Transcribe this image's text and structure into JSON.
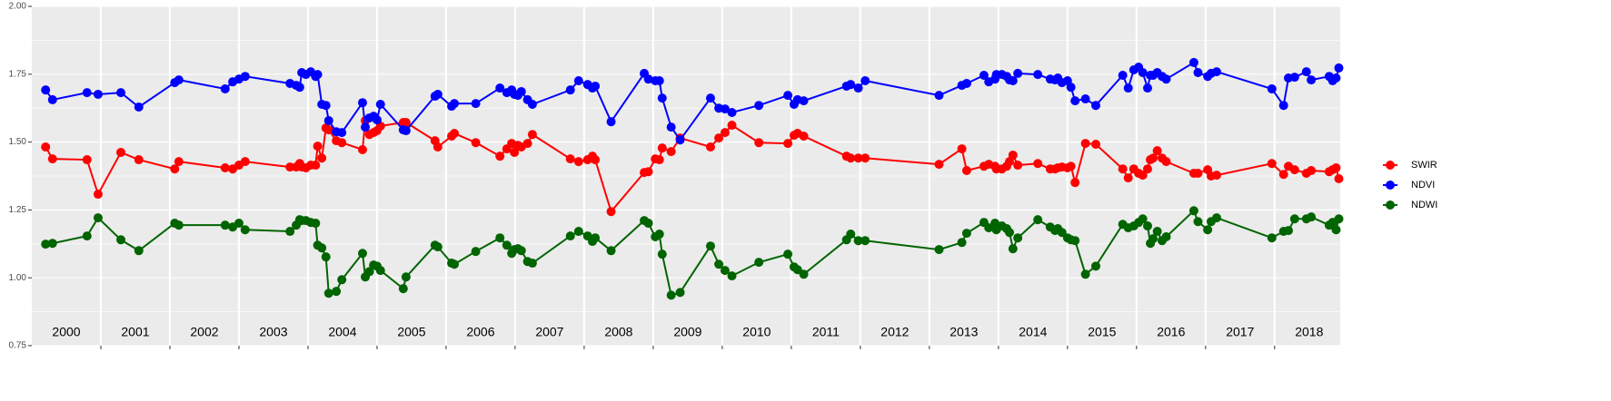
{
  "chart_data": {
    "type": "line",
    "x": [
      2000.2,
      2000.3,
      2000.8,
      2000.96,
      2001.29,
      2001.55,
      2002.07,
      2002.13,
      2002.8,
      2002.91,
      2003.0,
      2003.09,
      2003.74,
      2003.83,
      2003.88,
      2003.91,
      2003.97,
      2004.04,
      2004.11,
      2004.14,
      2004.2,
      2004.26,
      2004.3,
      2004.41,
      2004.49,
      2004.79,
      2004.83,
      2004.89,
      2004.95,
      2005.0,
      2005.05,
      2005.38,
      2005.42,
      2005.84,
      2005.88,
      2006.08,
      2006.12,
      2006.43,
      2006.78,
      2006.88,
      2006.95,
      2006.99,
      2007.04,
      2007.09,
      2007.18,
      2007.25,
      2007.8,
      2007.92,
      2008.05,
      2008.12,
      2008.16,
      2008.39,
      2008.87,
      2008.93,
      2009.03,
      2009.09,
      2009.13,
      2009.26,
      2009.39,
      2009.83,
      2009.95,
      2010.04,
      2010.14,
      2010.53,
      2010.95,
      2011.04,
      2011.09,
      2011.18,
      2011.8,
      2011.86,
      2011.97,
      2012.07,
      2013.14,
      2013.47,
      2013.54,
      2013.79,
      2013.86,
      2013.95,
      2013.97,
      2014.05,
      2014.12,
      2014.16,
      2014.21,
      2014.28,
      2014.57,
      2014.75,
      2014.82,
      2014.86,
      2014.92,
      2015.0,
      2015.05,
      2015.11,
      2015.26,
      2015.41,
      2015.8,
      2015.88,
      2015.96,
      2016.03,
      2016.09,
      2016.16,
      2016.2,
      2016.24,
      2016.3,
      2016.37,
      2016.43,
      2016.83,
      2016.89,
      2017.03,
      2017.08,
      2017.16,
      2017.96,
      2018.13,
      2018.2,
      2018.29,
      2018.46,
      2018.53,
      2018.79,
      2018.84,
      2018.89,
      2018.93
    ],
    "series": [
      {
        "name": "SWIR",
        "color": "#ff0000",
        "values": [
          1.482,
          1.438,
          1.435,
          1.308,
          1.462,
          1.435,
          1.401,
          1.428,
          1.405,
          1.401,
          1.415,
          1.428,
          1.408,
          1.408,
          1.421,
          1.408,
          1.405,
          1.415,
          1.415,
          1.485,
          1.441,
          1.552,
          1.545,
          1.505,
          1.498,
          1.472,
          1.579,
          1.528,
          1.535,
          1.542,
          1.559,
          1.572,
          1.572,
          1.505,
          1.482,
          1.522,
          1.532,
          1.498,
          1.448,
          1.475,
          1.495,
          1.462,
          1.488,
          1.482,
          1.495,
          1.528,
          1.438,
          1.428,
          1.435,
          1.448,
          1.435,
          1.244,
          1.388,
          1.391,
          1.438,
          1.435,
          1.478,
          1.465,
          1.515,
          1.482,
          1.515,
          1.535,
          1.562,
          1.498,
          1.495,
          1.525,
          1.532,
          1.522,
          1.448,
          1.441,
          1.441,
          1.441,
          1.418,
          1.475,
          1.395,
          1.411,
          1.418,
          1.411,
          1.401,
          1.401,
          1.411,
          1.428,
          1.452,
          1.415,
          1.421,
          1.401,
          1.401,
          1.405,
          1.408,
          1.405,
          1.411,
          1.351,
          1.495,
          1.492,
          1.401,
          1.368,
          1.401,
          1.385,
          1.378,
          1.401,
          1.435,
          1.441,
          1.468,
          1.441,
          1.428,
          1.385,
          1.385,
          1.398,
          1.375,
          1.378,
          1.421,
          1.381,
          1.411,
          1.398,
          1.385,
          1.395,
          1.391,
          1.398,
          1.405,
          1.365
        ]
      },
      {
        "name": "NDVI",
        "color": "#0000ff",
        "values": [
          1.692,
          1.656,
          1.682,
          1.676,
          1.682,
          1.629,
          1.719,
          1.729,
          1.696,
          1.722,
          1.732,
          1.742,
          1.716,
          1.709,
          1.702,
          1.756,
          1.749,
          1.759,
          1.742,
          1.749,
          1.639,
          1.635,
          1.579,
          1.538,
          1.535,
          1.645,
          1.555,
          1.589,
          1.595,
          1.582,
          1.639,
          1.545,
          1.542,
          1.669,
          1.676,
          1.632,
          1.642,
          1.642,
          1.699,
          1.682,
          1.692,
          1.676,
          1.672,
          1.686,
          1.656,
          1.639,
          1.692,
          1.726,
          1.712,
          1.699,
          1.706,
          1.575,
          1.753,
          1.732,
          1.726,
          1.726,
          1.662,
          1.555,
          1.508,
          1.662,
          1.625,
          1.622,
          1.609,
          1.635,
          1.672,
          1.639,
          1.656,
          1.652,
          1.706,
          1.712,
          1.699,
          1.726,
          1.672,
          1.709,
          1.716,
          1.746,
          1.722,
          1.732,
          1.749,
          1.749,
          1.742,
          1.729,
          1.726,
          1.753,
          1.749,
          1.732,
          1.729,
          1.736,
          1.719,
          1.726,
          1.702,
          1.652,
          1.659,
          1.635,
          1.746,
          1.699,
          1.766,
          1.776,
          1.756,
          1.699,
          1.746,
          1.746,
          1.756,
          1.742,
          1.732,
          1.793,
          1.756,
          1.742,
          1.753,
          1.759,
          1.696,
          1.635,
          1.736,
          1.739,
          1.759,
          1.729,
          1.742,
          1.726,
          1.736,
          1.773
        ]
      },
      {
        "name": "NDWI",
        "color": "#006400",
        "values": [
          1.124,
          1.127,
          1.154,
          1.221,
          1.14,
          1.1,
          1.201,
          1.194,
          1.194,
          1.187,
          1.201,
          1.177,
          1.171,
          1.194,
          1.214,
          1.211,
          1.211,
          1.204,
          1.201,
          1.12,
          1.11,
          1.077,
          0.943,
          0.95,
          0.993,
          1.09,
          1.003,
          1.023,
          1.047,
          1.043,
          1.027,
          0.96,
          1.003,
          1.12,
          1.114,
          1.054,
          1.05,
          1.097,
          1.147,
          1.12,
          1.09,
          1.104,
          1.107,
          1.1,
          1.06,
          1.054,
          1.154,
          1.171,
          1.154,
          1.134,
          1.147,
          1.1,
          1.211,
          1.201,
          1.151,
          1.161,
          1.087,
          0.936,
          0.946,
          1.117,
          1.05,
          1.027,
          1.007,
          1.057,
          1.087,
          1.04,
          1.03,
          1.013,
          1.14,
          1.161,
          1.137,
          1.137,
          1.104,
          1.13,
          1.164,
          1.204,
          1.184,
          1.201,
          1.177,
          1.191,
          1.181,
          1.167,
          1.107,
          1.147,
          1.214,
          1.187,
          1.174,
          1.181,
          1.167,
          1.147,
          1.14,
          1.137,
          1.013,
          1.043,
          1.197,
          1.184,
          1.191,
          1.204,
          1.217,
          1.191,
          1.127,
          1.144,
          1.171,
          1.137,
          1.151,
          1.247,
          1.207,
          1.177,
          1.207,
          1.221,
          1.147,
          1.171,
          1.174,
          1.217,
          1.217,
          1.224,
          1.194,
          1.204,
          1.177,
          1.217
        ]
      }
    ],
    "xlim": [
      2000,
      2018.95
    ],
    "year_boundaries": [
      2001,
      2002,
      2003,
      2004,
      2005,
      2006,
      2007,
      2008,
      2009,
      2010,
      2011,
      2012,
      2013,
      2014,
      2015,
      2016,
      2017,
      2018
    ],
    "ylim": [
      0.75,
      2.0
    ],
    "yticks": [
      {
        "value": 0.75,
        "label": "0.75"
      },
      {
        "value": 1.0,
        "label": "1.00"
      },
      {
        "value": 1.25,
        "label": "1.25"
      },
      {
        "value": 1.5,
        "label": "1.50"
      },
      {
        "value": 1.75,
        "label": "1.75"
      },
      {
        "value": 2.0,
        "label": "2.00"
      }
    ],
    "annotations": [
      {
        "x": 2000.5,
        "text": "2000"
      },
      {
        "x": 2001.5,
        "text": "2001"
      },
      {
        "x": 2002.5,
        "text": "2002"
      },
      {
        "x": 2003.5,
        "text": "2003"
      },
      {
        "x": 2004.5,
        "text": "2004"
      },
      {
        "x": 2005.5,
        "text": "2005"
      },
      {
        "x": 2006.5,
        "text": "2006"
      },
      {
        "x": 2007.5,
        "text": "2007"
      },
      {
        "x": 2008.5,
        "text": "2008"
      },
      {
        "x": 2009.5,
        "text": "2009"
      },
      {
        "x": 2010.5,
        "text": "2010"
      },
      {
        "x": 2011.5,
        "text": "2011"
      },
      {
        "x": 2012.5,
        "text": "2012"
      },
      {
        "x": 2013.5,
        "text": "2013"
      },
      {
        "x": 2014.5,
        "text": "2014"
      },
      {
        "x": 2015.5,
        "text": "2015"
      },
      {
        "x": 2016.5,
        "text": "2016"
      },
      {
        "x": 2017.5,
        "text": "2017"
      },
      {
        "x": 2018.5,
        "text": "2018"
      }
    ],
    "grid": true,
    "legend": "right"
  }
}
